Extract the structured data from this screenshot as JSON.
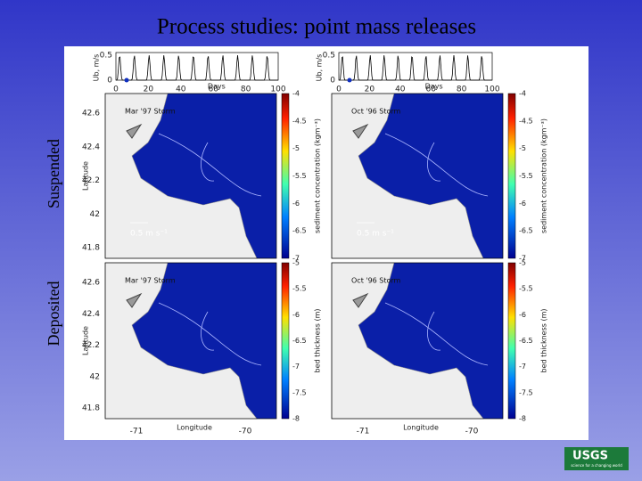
{
  "header": {
    "title": "Process studies: point mass releases"
  },
  "row_labels": [
    "Suspended",
    "Deposited"
  ],
  "time_series": [
    {
      "y_label": "Ub, m/s",
      "y_ticks": [
        "0.5",
        "0"
      ],
      "x_label": "Days",
      "x_ticks": [
        "0",
        "20",
        "40",
        "60",
        "80",
        "100"
      ]
    },
    {
      "y_label": "Ub, m/s",
      "y_ticks": [
        "0.5",
        "0"
      ],
      "x_label": "Days",
      "x_ticks": [
        "0",
        "20",
        "40",
        "60",
        "80",
        "100"
      ]
    }
  ],
  "panels": [
    {
      "storm": "Mar '97 Storm",
      "latitude_label": "Latitude",
      "latitude_ticks": [
        "42.6",
        "42.4",
        "42.2",
        "42",
        "41.8"
      ],
      "vector_scale": "0.5 m s⁻¹",
      "colorbar_label": "sediment concentration (kgm⁻³)",
      "colorbar_ticks": [
        "-4",
        "-4.5",
        "-5",
        "-5.5",
        "-6",
        "-6.5",
        "-7"
      ]
    },
    {
      "storm": "Oct '96 Storm",
      "vector_scale": "0.5 m s⁻¹",
      "colorbar_label": "sediment concentration (kgm⁻³)",
      "colorbar_ticks": [
        "-4",
        "-4.5",
        "-5",
        "-5.5",
        "-6",
        "-6.5",
        "-7"
      ]
    },
    {
      "storm": "Mar '97 Storm",
      "latitude_label": "Latitude",
      "latitude_ticks": [
        "42.6",
        "42.4",
        "42.2",
        "42",
        "41.8"
      ],
      "longitude_label": "Longitude",
      "longitude_ticks": [
        "-71",
        "-70"
      ],
      "colorbar_label": "bed thickness (m)",
      "colorbar_ticks": [
        "-5",
        "-5.5",
        "-6",
        "-6.5",
        "-7",
        "-7.5",
        "-8"
      ]
    },
    {
      "storm": "Oct '96 Storm",
      "longitude_label": "Longitude",
      "longitude_ticks": [
        "-71",
        "-70"
      ],
      "colorbar_label": "bed thickness (m)",
      "colorbar_ticks": [
        "-5",
        "-5.5",
        "-6",
        "-6.5",
        "-7",
        "-7.5",
        "-8"
      ]
    }
  ],
  "logo": {
    "name": "USGS",
    "tagline": "science for a changing world"
  }
}
